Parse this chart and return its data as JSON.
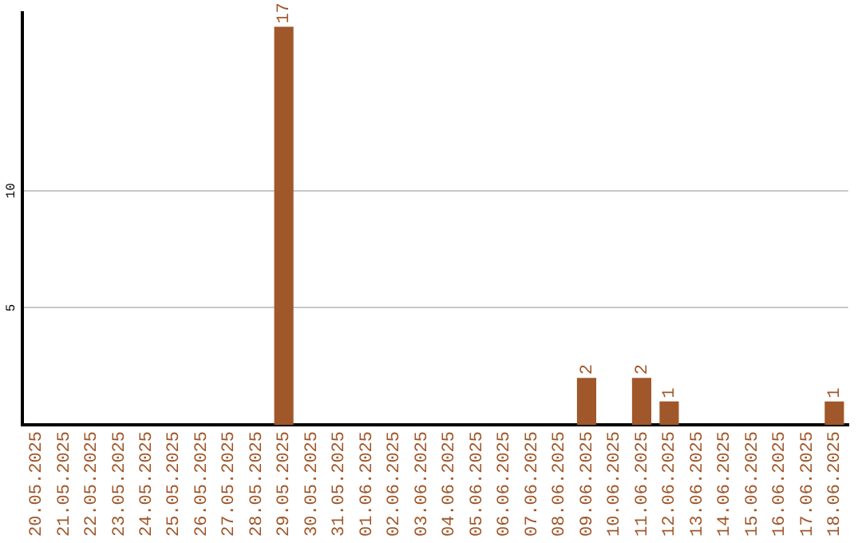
{
  "chart_data": {
    "type": "bar",
    "categories": [
      "20.05.2025",
      "21.05.2025",
      "22.05.2025",
      "23.05.2025",
      "24.05.2025",
      "25.05.2025",
      "26.05.2025",
      "27.05.2025",
      "28.05.2025",
      "29.05.2025",
      "30.05.2025",
      "31.05.2025",
      "01.06.2025",
      "02.06.2025",
      "03.06.2025",
      "04.06.2025",
      "05.06.2025",
      "06.06.2025",
      "07.06.2025",
      "08.06.2025",
      "09.06.2025",
      "10.06.2025",
      "11.06.2025",
      "12.06.2025",
      "13.06.2025",
      "14.06.2025",
      "15.06.2025",
      "16.06.2025",
      "17.06.2025",
      "18.06.2025"
    ],
    "values": [
      0,
      0,
      0,
      0,
      0,
      0,
      0,
      0,
      0,
      17,
      0,
      0,
      0,
      0,
      0,
      0,
      0,
      0,
      0,
      0,
      2,
      0,
      2,
      1,
      0,
      0,
      0,
      0,
      0,
      1
    ],
    "value_labels": [
      null,
      null,
      null,
      null,
      null,
      null,
      null,
      null,
      null,
      "17",
      null,
      null,
      null,
      null,
      null,
      null,
      null,
      null,
      null,
      null,
      "2",
      null,
      "2",
      "1",
      null,
      null,
      null,
      null,
      null,
      "1"
    ],
    "color": "#a0572a",
    "ylim": [
      0,
      17.6
    ],
    "yticks": [
      5,
      10
    ],
    "grid": "y",
    "legend": false
  }
}
